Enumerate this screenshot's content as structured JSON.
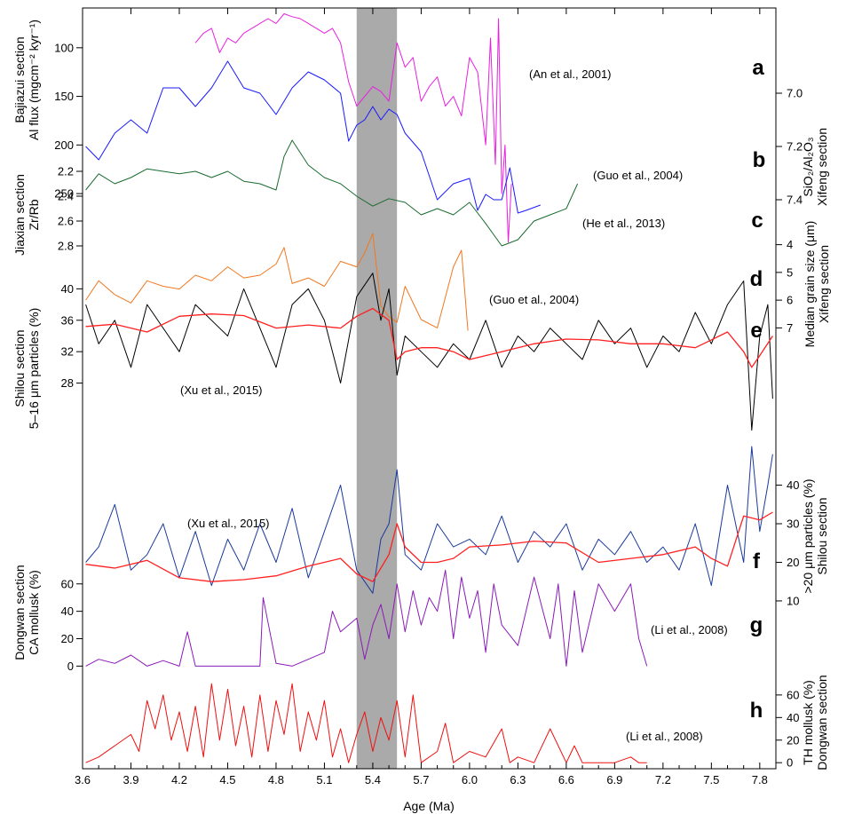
{
  "figure": {
    "xlabel": "Age (Ma)",
    "xlim": [
      3.6,
      7.9
    ],
    "xticks": [
      "3.6",
      "3.9",
      "4.2",
      "4.5",
      "4.8",
      "5.1",
      "5.4",
      "5.7",
      "6.0",
      "6.3",
      "6.6",
      "6.9",
      "7.2",
      "7.5",
      "7.8"
    ],
    "shaded_interval": [
      5.3,
      5.55
    ],
    "shade_color": "#aaaaaa"
  },
  "chart_data": [
    {
      "type": "line",
      "panel": "a",
      "citation": "(An et al., 2001)",
      "ylabel": [
        "Bajiazui section",
        "Al flux (mgcm⁻² kyr⁻¹)"
      ],
      "y_axis_side": "left",
      "y_inverted": true,
      "ylim": [
        60,
        270
      ],
      "yticks": [
        "100",
        "150",
        "200",
        "250"
      ],
      "color": "#e81fe0",
      "series": [
        {
          "x": [
            4.3,
            4.35,
            4.4,
            4.45,
            4.5,
            4.55,
            4.6,
            4.65,
            4.7,
            4.75,
            4.8,
            4.85,
            4.9,
            4.95,
            5.0,
            5.05,
            5.1,
            5.15,
            5.2,
            5.25,
            5.3,
            5.35,
            5.4,
            5.45,
            5.5,
            5.55,
            5.6,
            5.65,
            5.7,
            5.75,
            5.8,
            5.85,
            5.9,
            5.95,
            6.0,
            6.05,
            6.1,
            6.13,
            6.16,
            6.18,
            6.2,
            6.22,
            6.24,
            6.26
          ],
          "y": [
            95,
            85,
            80,
            105,
            90,
            95,
            85,
            80,
            75,
            70,
            75,
            65,
            68,
            70,
            75,
            80,
            85,
            80,
            95,
            135,
            160,
            150,
            140,
            145,
            155,
            95,
            120,
            110,
            155,
            140,
            130,
            160,
            150,
            170,
            110,
            125,
            200,
            90,
            220,
            70,
            250,
            200,
            300,
            240
          ]
        }
      ]
    },
    {
      "type": "line",
      "panel": "b",
      "citation": "(Guo et al., 2004)",
      "ylabel": [
        "SiO₂/Al₂O₃",
        "Xifeng section"
      ],
      "y_axis_side": "right",
      "y_inverted": true,
      "ylim": [
        6.9,
        7.5
      ],
      "yticks": [
        "7.0",
        "7.2",
        "7.4"
      ],
      "color": "#1a1aff",
      "series": [
        {
          "x": [
            3.62,
            3.7,
            3.8,
            3.9,
            4.0,
            4.1,
            4.2,
            4.3,
            4.4,
            4.5,
            4.6,
            4.7,
            4.8,
            4.9,
            5.0,
            5.1,
            5.2,
            5.25,
            5.3,
            5.35,
            5.4,
            5.45,
            5.5,
            5.55,
            5.6,
            5.7,
            5.8,
            5.9,
            6.0,
            6.05,
            6.1,
            6.15,
            6.2,
            6.25,
            6.3,
            6.35,
            6.44
          ],
          "y": [
            7.2,
            7.25,
            7.15,
            7.1,
            7.15,
            6.98,
            6.98,
            7.05,
            6.98,
            6.88,
            6.98,
            7.0,
            7.08,
            6.98,
            6.92,
            6.95,
            7.0,
            7.18,
            7.12,
            7.1,
            7.05,
            7.1,
            7.06,
            7.08,
            7.15,
            7.22,
            7.4,
            7.34,
            7.32,
            7.44,
            7.38,
            7.4,
            7.4,
            7.28,
            7.45,
            7.44,
            7.42
          ]
        }
      ]
    },
    {
      "type": "line",
      "panel": "c",
      "citation": "(He et al., 2013)",
      "ylabel": [
        "Jiaxian section",
        "Zr/Rb"
      ],
      "y_axis_side": "left",
      "y_inverted": true,
      "ylim": [
        2.0,
        3.0
      ],
      "yticks": [
        "2.2",
        "2.4",
        "2.6",
        "2.8"
      ],
      "color": "#1a6b2e",
      "series": [
        {
          "x": [
            3.62,
            3.7,
            3.8,
            3.9,
            4.0,
            4.1,
            4.2,
            4.3,
            4.4,
            4.5,
            4.6,
            4.7,
            4.8,
            4.85,
            4.9,
            5.0,
            5.1,
            5.2,
            5.3,
            5.4,
            5.5,
            5.6,
            5.7,
            5.8,
            5.9,
            6.0,
            6.1,
            6.2,
            6.3,
            6.4,
            6.5,
            6.6,
            6.67
          ],
          "y": [
            2.35,
            2.22,
            2.3,
            2.25,
            2.18,
            2.2,
            2.22,
            2.2,
            2.25,
            2.2,
            2.28,
            2.3,
            2.35,
            2.08,
            1.95,
            2.15,
            2.25,
            2.3,
            2.4,
            2.48,
            2.42,
            2.45,
            2.55,
            2.5,
            2.55,
            2.45,
            2.62,
            2.8,
            2.75,
            2.6,
            2.55,
            2.5,
            2.3
          ]
        }
      ]
    },
    {
      "type": "line",
      "panel": "d",
      "citation": "(Guo et al., 2004)",
      "ylabel": [
        "Median grain size (μm)",
        "Xifeng section"
      ],
      "y_axis_side": "right",
      "y_inverted": true,
      "ylim": [
        3.5,
        7.5
      ],
      "yticks": [
        "4",
        "5",
        "6",
        "7"
      ],
      "color": "#f07820",
      "series": [
        {
          "x": [
            3.62,
            3.7,
            3.8,
            3.9,
            4.0,
            4.1,
            4.2,
            4.3,
            4.4,
            4.5,
            4.6,
            4.7,
            4.8,
            4.85,
            4.9,
            5.0,
            5.1,
            5.2,
            5.3,
            5.35,
            5.4,
            5.45,
            5.5,
            5.55,
            5.6,
            5.7,
            5.8,
            5.9,
            5.95,
            5.99
          ],
          "y": [
            6.0,
            5.3,
            5.8,
            6.1,
            5.3,
            5.5,
            5.6,
            5.1,
            5.3,
            4.8,
            5.2,
            5.1,
            4.7,
            4.1,
            5.4,
            5.2,
            5.5,
            4.6,
            4.8,
            4.3,
            3.6,
            6.2,
            6.6,
            6.8,
            5.5,
            6.7,
            7.0,
            4.8,
            4.2,
            7.1
          ]
        }
      ]
    },
    {
      "type": "line",
      "panel": "e",
      "citation": "(Xu et al., 2015)",
      "ylabel": [
        "Shilou section",
        "5–16 μm particles (%)"
      ],
      "y_axis_side": "left",
      "y_inverted": false,
      "ylim": [
        18,
        44
      ],
      "yticks": [
        "28",
        "32",
        "36",
        "40"
      ],
      "color": "#000000",
      "smooth_color": "#ff2020",
      "series": [
        {
          "x": [
            3.62,
            3.7,
            3.8,
            3.9,
            4.0,
            4.1,
            4.2,
            4.3,
            4.4,
            4.5,
            4.6,
            4.7,
            4.8,
            4.9,
            5.0,
            5.1,
            5.2,
            5.3,
            5.4,
            5.45,
            5.5,
            5.55,
            5.6,
            5.7,
            5.8,
            5.9,
            6.0,
            6.1,
            6.2,
            6.3,
            6.4,
            6.5,
            6.6,
            6.7,
            6.8,
            6.9,
            7.0,
            7.1,
            7.2,
            7.3,
            7.4,
            7.5,
            7.6,
            7.7,
            7.75,
            7.8,
            7.85,
            7.88
          ],
          "y": [
            38,
            33,
            36,
            30,
            38,
            35,
            32,
            38,
            36,
            34,
            40,
            35,
            30,
            38,
            40,
            36,
            28,
            39,
            42,
            36,
            40,
            29,
            34,
            32,
            30,
            33,
            31,
            36,
            30,
            34,
            32,
            35,
            33,
            31,
            36,
            33,
            35,
            30,
            34,
            32,
            37,
            33,
            38,
            41,
            22,
            34,
            38,
            26
          ]
        },
        {
          "x": [
            3.62,
            3.8,
            4.0,
            4.2,
            4.4,
            4.6,
            4.8,
            5.0,
            5.2,
            5.3,
            5.4,
            5.5,
            5.55,
            5.6,
            5.7,
            5.8,
            5.9,
            6.0,
            6.2,
            6.4,
            6.6,
            6.8,
            7.0,
            7.2,
            7.4,
            7.5,
            7.6,
            7.7,
            7.75,
            7.8,
            7.88
          ],
          "y": [
            35.2,
            35.5,
            34.5,
            36.5,
            36.8,
            36.6,
            35.0,
            35.4,
            35.0,
            36.5,
            37.5,
            36.0,
            31.0,
            32.0,
            32.5,
            32.5,
            32.0,
            31.0,
            32.0,
            33.0,
            33.6,
            33.5,
            33.0,
            33.0,
            32.5,
            33.5,
            34.5,
            32.0,
            30.0,
            31.5,
            34.0
          ]
        }
      ]
    },
    {
      "type": "line",
      "panel": "f",
      "citation": "(Xu et al., 2015)",
      "ylabel": [
        ">20 μm particles (%)",
        "Shilou section"
      ],
      "y_axis_side": "right",
      "y_inverted": false,
      "ylim": [
        7,
        53
      ],
      "yticks": [
        "10",
        "20",
        "30",
        "40"
      ],
      "color": "#1a3a9a",
      "smooth_color": "#ff2020",
      "series": [
        {
          "x": [
            3.62,
            3.7,
            3.8,
            3.9,
            4.0,
            4.1,
            4.2,
            4.3,
            4.4,
            4.5,
            4.6,
            4.7,
            4.8,
            4.9,
            5.0,
            5.1,
            5.2,
            5.3,
            5.4,
            5.45,
            5.5,
            5.55,
            5.6,
            5.7,
            5.8,
            5.9,
            6.0,
            6.1,
            6.2,
            6.3,
            6.4,
            6.5,
            6.6,
            6.7,
            6.8,
            6.9,
            7.0,
            7.1,
            7.2,
            7.3,
            7.4,
            7.5,
            7.6,
            7.7,
            7.75,
            7.8,
            7.85,
            7.88
          ],
          "y": [
            20,
            24,
            35,
            18,
            22,
            30,
            16,
            28,
            14,
            26,
            18,
            30,
            20,
            34,
            16,
            28,
            40,
            18,
            12,
            26,
            30,
            44,
            22,
            18,
            30,
            24,
            26,
            22,
            32,
            20,
            28,
            24,
            30,
            18,
            26,
            22,
            28,
            20,
            24,
            18,
            30,
            14,
            40,
            20,
            50,
            28,
            40,
            48
          ]
        },
        {
          "x": [
            3.62,
            3.8,
            4.0,
            4.2,
            4.4,
            4.6,
            4.8,
            5.0,
            5.2,
            5.3,
            5.4,
            5.5,
            5.55,
            5.6,
            5.7,
            5.8,
            5.9,
            6.0,
            6.2,
            6.4,
            6.6,
            6.8,
            7.0,
            7.2,
            7.4,
            7.5,
            7.6,
            7.7,
            7.8,
            7.88
          ],
          "y": [
            19.5,
            18.5,
            20.5,
            16.0,
            15.0,
            15.5,
            16.5,
            19.0,
            21.0,
            17.0,
            15.0,
            22.0,
            30.0,
            24.0,
            20.0,
            20.0,
            21.0,
            24.0,
            24.5,
            25.5,
            25.0,
            20.0,
            21.0,
            22.0,
            24.0,
            21.0,
            19.0,
            32.0,
            31.0,
            33.0
          ]
        }
      ]
    },
    {
      "type": "line",
      "panel": "g",
      "citation": "(Li et al., 2008)",
      "ylabel": [
        "Dongwan section",
        "CA mollusk (%)"
      ],
      "y_axis_side": "left",
      "y_inverted": false,
      "ylim": [
        -3,
        78
      ],
      "yticks": [
        "0",
        "20",
        "40",
        "60"
      ],
      "color": "#8a1ab8",
      "series": [
        {
          "x": [
            3.62,
            3.7,
            3.8,
            3.9,
            4.0,
            4.1,
            4.2,
            4.25,
            4.3,
            4.4,
            4.5,
            4.6,
            4.7,
            4.72,
            4.8,
            4.9,
            5.0,
            5.1,
            5.15,
            5.2,
            5.3,
            5.35,
            5.4,
            5.45,
            5.5,
            5.55,
            5.6,
            5.65,
            5.7,
            5.75,
            5.8,
            5.85,
            5.9,
            5.95,
            6.0,
            6.05,
            6.1,
            6.15,
            6.2,
            6.3,
            6.4,
            6.5,
            6.55,
            6.6,
            6.65,
            6.7,
            6.8,
            6.9,
            7.0,
            7.05,
            7.1
          ],
          "y": [
            0,
            5,
            2,
            8,
            0,
            4,
            0,
            25,
            0,
            0,
            0,
            0,
            0,
            50,
            2,
            0,
            5,
            10,
            40,
            25,
            35,
            5,
            30,
            45,
            20,
            60,
            25,
            55,
            30,
            50,
            40,
            70,
            20,
            65,
            35,
            55,
            10,
            60,
            30,
            15,
            65,
            20,
            60,
            0,
            55,
            10,
            60,
            40,
            60,
            20,
            0
          ]
        }
      ]
    },
    {
      "type": "line",
      "panel": "h",
      "citation": "(Li et al., 2008)",
      "ylabel": [
        "TH mollusk (%)",
        "Dongwan section"
      ],
      "y_axis_side": "right",
      "y_inverted": false,
      "ylim": [
        -3,
        78
      ],
      "yticks": [
        "0",
        "20",
        "40",
        "60"
      ],
      "color": "#ee1010",
      "series": [
        {
          "x": [
            3.62,
            3.7,
            3.8,
            3.9,
            3.95,
            4.0,
            4.05,
            4.1,
            4.15,
            4.2,
            4.25,
            4.3,
            4.35,
            4.4,
            4.45,
            4.5,
            4.55,
            4.6,
            4.65,
            4.7,
            4.75,
            4.8,
            4.85,
            4.9,
            4.95,
            5.0,
            5.05,
            5.1,
            5.15,
            5.2,
            5.25,
            5.3,
            5.35,
            5.4,
            5.45,
            5.5,
            5.55,
            5.6,
            5.65,
            5.7,
            5.8,
            5.85,
            5.9,
            6.0,
            6.1,
            6.2,
            6.25,
            6.3,
            6.4,
            6.5,
            6.6,
            6.65,
            6.7,
            6.8,
            6.9,
            7.0,
            7.05,
            7.1
          ],
          "y": [
            0,
            5,
            15,
            25,
            10,
            55,
            30,
            60,
            20,
            45,
            10,
            50,
            5,
            70,
            20,
            65,
            15,
            50,
            5,
            60,
            10,
            55,
            25,
            70,
            10,
            45,
            20,
            55,
            5,
            30,
            0,
            25,
            45,
            10,
            40,
            20,
            55,
            5,
            60,
            0,
            10,
            35,
            0,
            10,
            5,
            30,
            0,
            5,
            0,
            30,
            0,
            15,
            0,
            0,
            0,
            5,
            0,
            0
          ]
        }
      ]
    }
  ]
}
